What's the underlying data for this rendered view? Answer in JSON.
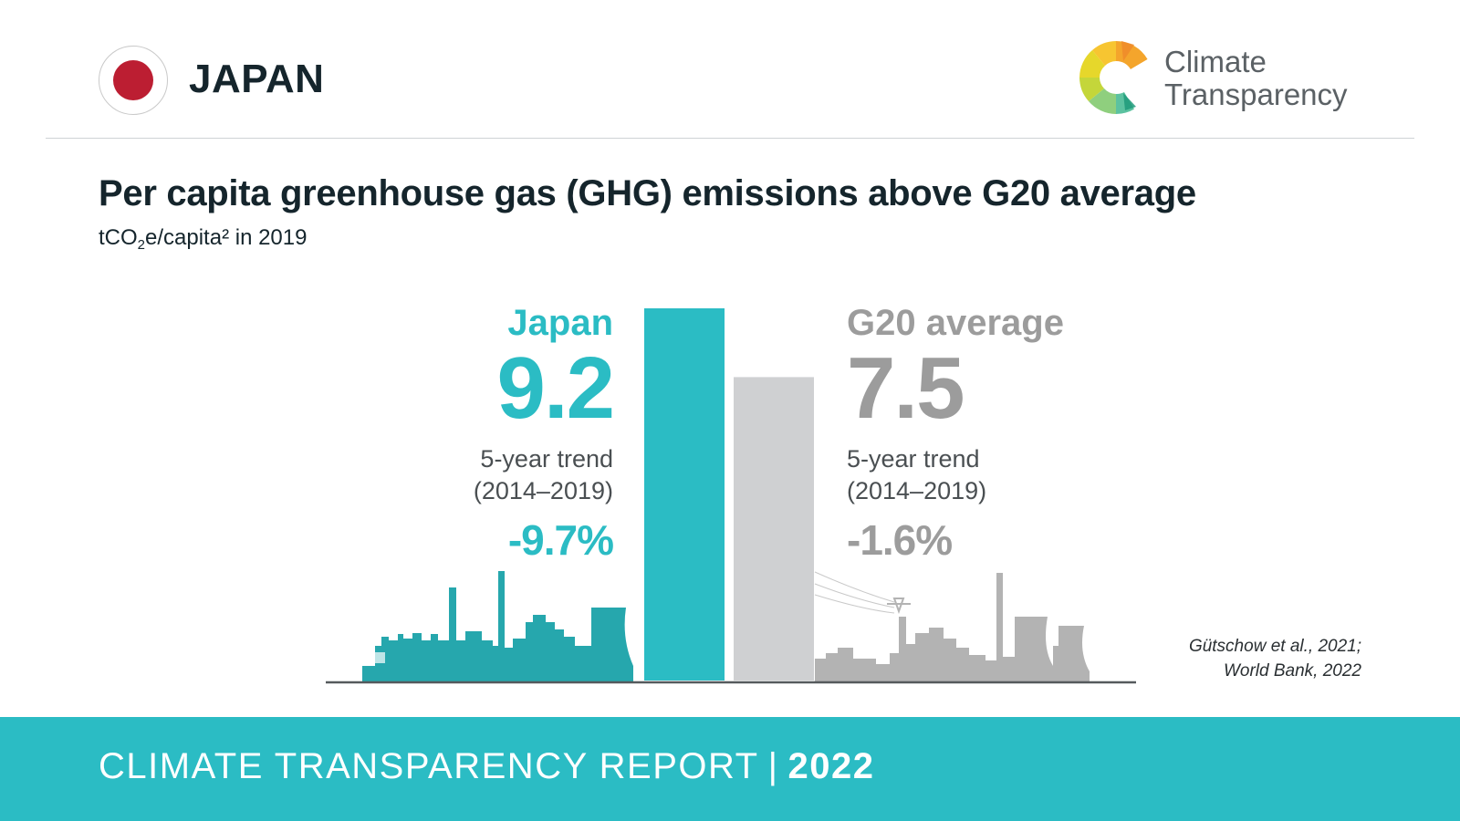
{
  "header": {
    "country": "JAPAN",
    "flag_colors": {
      "field": "#ffffff",
      "disc": "#bc1e32"
    },
    "logo": {
      "line1": "Climate",
      "line2": "Transparency",
      "icon": "climate-transparency-logo-icon"
    }
  },
  "title": "Per capita greenhouse gas (GHG) emissions above G20 average",
  "subtitle": {
    "pre": "tCO",
    "sub": "2",
    "post": "e/capita² in 2019"
  },
  "colors": {
    "japan": "#2bbcc4",
    "g20": "#cfd0d2",
    "g20_text": "#9c9c9c",
    "silhouette_japan": "#26a7ad",
    "silhouette_g20": "#b3b3b3",
    "footer": "#2bbcc4"
  },
  "chart_data": {
    "type": "bar",
    "title": "Per capita greenhouse gas (GHG) emissions above G20 average",
    "unit": "tCO2e/capita² in 2019",
    "categories": [
      "Japan",
      "G20 average"
    ],
    "values": [
      9.2,
      7.5
    ],
    "labels": {
      "japan": {
        "name": "Japan",
        "value": "9.2",
        "trend_line1": "5-year trend",
        "trend_line2": "(2014–2019)",
        "trend_value": "-9.7%"
      },
      "g20": {
        "name": "G20 average",
        "value": "7.5",
        "trend_line1": "5-year trend",
        "trend_line2": "(2014–2019)",
        "trend_value": "-1.6%"
      }
    },
    "ylim": [
      0,
      9.2
    ],
    "grid": false,
    "legend": "none"
  },
  "source": {
    "line1": "Gütschow et al., 2021;",
    "line2": "World Bank, 2022"
  },
  "footer": {
    "text": "CLIMATE TRANSPARENCY REPORT",
    "separator": "|",
    "year": "2022"
  }
}
